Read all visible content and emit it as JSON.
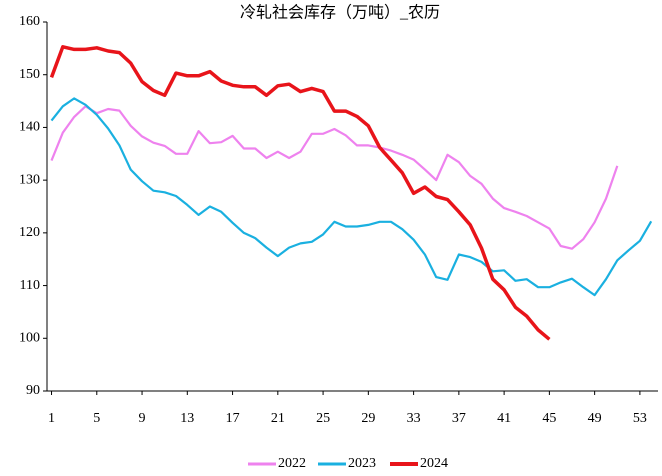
{
  "chart_data": {
    "type": "line",
    "title": "冷轧社会库存（万吨）_农历",
    "xlim": [
      0.6,
      54.6
    ],
    "xticks": [
      1,
      5,
      9,
      13,
      17,
      21,
      25,
      29,
      33,
      37,
      41,
      45,
      49,
      53
    ],
    "ylim": [
      90,
      160
    ],
    "yticks": [
      90,
      100,
      110,
      120,
      130,
      140,
      150,
      160
    ],
    "legend": "bottom",
    "series": [
      {
        "name": "2022",
        "color": "#ee82ee",
        "x": [
          1,
          2,
          3,
          4,
          5,
          6,
          7,
          8,
          9,
          10,
          11,
          12,
          13,
          14,
          15,
          16,
          17,
          18,
          19,
          20,
          21,
          22,
          23,
          24,
          25,
          26,
          27,
          28,
          29,
          30,
          31,
          32,
          33,
          34,
          35,
          36,
          37,
          38,
          39,
          40,
          41,
          42,
          43,
          44,
          45,
          46,
          47,
          48,
          49,
          50,
          51
        ],
        "values": [
          133.7,
          139,
          142,
          144,
          142.7,
          143.5,
          143.2,
          140.3,
          138.3,
          137.1,
          136.5,
          135,
          135,
          139.3,
          137,
          137.2,
          138.4,
          136,
          136,
          134.2,
          135.4,
          134.2,
          135.4,
          138.8,
          138.8,
          139.7,
          138.5,
          136.6,
          136.6,
          136.2,
          135.6,
          134.8,
          133.9,
          132,
          130,
          134.8,
          133.4,
          130.8,
          129.3,
          126.5,
          124.7,
          124,
          123.2,
          122,
          120.8,
          117.5,
          117,
          118.8,
          122,
          126.5,
          132.7
        ]
      },
      {
        "name": "2023",
        "color": "#1ab0e0",
        "x": [
          1,
          2,
          3,
          4,
          5,
          6,
          7,
          8,
          9,
          10,
          11,
          12,
          13,
          14,
          15,
          16,
          17,
          18,
          19,
          20,
          21,
          22,
          23,
          24,
          25,
          26,
          27,
          28,
          29,
          30,
          31,
          32,
          33,
          34,
          35,
          36,
          37,
          38,
          39,
          40,
          41,
          42,
          43,
          44,
          45,
          46,
          47,
          48,
          49,
          50,
          51,
          52,
          53,
          54
        ],
        "values": [
          141.3,
          144,
          145.5,
          144.3,
          142.4,
          139.8,
          136.6,
          132,
          129.8,
          128,
          127.7,
          127,
          125.3,
          123.4,
          125,
          124,
          121.9,
          120,
          119,
          117.2,
          115.6,
          117.2,
          118,
          118.3,
          119.7,
          122.1,
          121.2,
          121.2,
          121.5,
          122.1,
          122.1,
          120.7,
          118.7,
          115.9,
          111.6,
          111.1,
          115.9,
          115.4,
          114.5,
          112.7,
          112.9,
          110.9,
          111.2,
          109.7,
          109.7,
          110.6,
          111.3,
          109.7,
          108.2,
          111.2,
          114.8,
          116.7,
          118.5,
          122.2
        ]
      },
      {
        "name": "2024",
        "color": "#e8141a",
        "x": [
          1,
          2,
          3,
          4,
          5,
          6,
          7,
          8,
          9,
          10,
          11,
          12,
          13,
          14,
          15,
          16,
          17,
          18,
          19,
          20,
          21,
          22,
          23,
          24,
          25,
          26,
          27,
          28,
          29,
          30,
          31,
          32,
          33,
          34,
          35,
          36,
          37,
          38,
          39,
          40,
          41,
          42,
          43,
          44,
          45
        ],
        "values": [
          149.5,
          155.3,
          154.8,
          154.8,
          155.1,
          154.5,
          154.2,
          152.2,
          148.7,
          147,
          146.1,
          150.3,
          149.8,
          149.8,
          150.6,
          148.8,
          148,
          147.7,
          147.7,
          146.1,
          147.9,
          148.2,
          146.8,
          147.4,
          146.8,
          143.1,
          143.1,
          142.1,
          140.3,
          136.2,
          133.8,
          131.4,
          127.5,
          128.7,
          126.9,
          126.3,
          124,
          121.5,
          117.1,
          111.2,
          109.2,
          105.9,
          104.2,
          101.6,
          99.8
        ]
      }
    ]
  }
}
